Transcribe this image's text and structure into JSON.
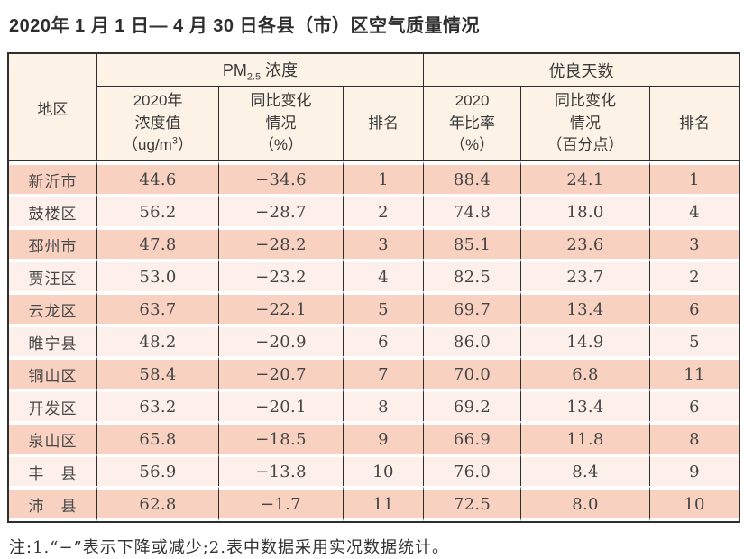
{
  "title": "2020年 1 月 1 日— 4 月 30 日各县（市）区空气质量情况",
  "note": "注:1.“−”表示下降或减少;2.表中数据采用实况数据统计。",
  "colors": {
    "row_odd_bg": "#f8d1c1",
    "row_even_bg": "#fdf0ea",
    "header_bg": "#fdf2e6",
    "border": "#2e2e2e"
  },
  "table": {
    "region_header": "地区",
    "groups": {
      "pm": {
        "prefix": "PM",
        "sub": "2.5",
        "suffix": " 浓度"
      },
      "good": "优良天数"
    },
    "subheaders": {
      "pm_value": {
        "line1": "2020年",
        "line2": "浓度值",
        "line3_pre": "（ug/m",
        "line3_sup": "3",
        "line3_post": "）"
      },
      "pm_change": {
        "line1": "同比变化",
        "line2": "情况",
        "line3": "（%）"
      },
      "pm_rank": "排名",
      "good_rate": {
        "line1": "2020",
        "line2": "年比率",
        "line3": "（%）"
      },
      "good_change": {
        "line1": "同比变化",
        "line2": "情况",
        "line3": "（百分点）"
      },
      "good_rank": "排名"
    },
    "rows": [
      {
        "region": "新沂市",
        "pm_value": "44.6",
        "pm_change": "−34.6",
        "pm_rank": "1",
        "good_rate": "88.4",
        "good_change": "24.1",
        "good_rank": "1"
      },
      {
        "region": "鼓楼区",
        "pm_value": "56.2",
        "pm_change": "−28.7",
        "pm_rank": "2",
        "good_rate": "74.8",
        "good_change": "18.0",
        "good_rank": "4"
      },
      {
        "region": "邳州市",
        "pm_value": "47.8",
        "pm_change": "−28.2",
        "pm_rank": "3",
        "good_rate": "85.1",
        "good_change": "23.6",
        "good_rank": "3"
      },
      {
        "region": "贾汪区",
        "pm_value": "53.0",
        "pm_change": "−23.2",
        "pm_rank": "4",
        "good_rate": "82.5",
        "good_change": "23.7",
        "good_rank": "2"
      },
      {
        "region": "云龙区",
        "pm_value": "63.7",
        "pm_change": "−22.1",
        "pm_rank": "5",
        "good_rate": "69.7",
        "good_change": "13.4",
        "good_rank": "6"
      },
      {
        "region": "睢宁县",
        "pm_value": "48.2",
        "pm_change": "−20.9",
        "pm_rank": "6",
        "good_rate": "86.0",
        "good_change": "14.9",
        "good_rank": "5"
      },
      {
        "region": "铜山区",
        "pm_value": "58.4",
        "pm_change": "−20.7",
        "pm_rank": "7",
        "good_rate": "70.0",
        "good_change": "6.8",
        "good_rank": "11"
      },
      {
        "region": "开发区",
        "pm_value": "63.2",
        "pm_change": "−20.1",
        "pm_rank": "8",
        "good_rate": "69.2",
        "good_change": "13.4",
        "good_rank": "6"
      },
      {
        "region": "泉山区",
        "pm_value": "65.8",
        "pm_change": "−18.5",
        "pm_rank": "9",
        "good_rate": "66.9",
        "good_change": "11.8",
        "good_rank": "8"
      },
      {
        "region": "丰　县",
        "pm_value": "56.9",
        "pm_change": "−13.8",
        "pm_rank": "10",
        "good_rate": "76.0",
        "good_change": "8.4",
        "good_rank": "9"
      },
      {
        "region": "沛　县",
        "pm_value": "62.8",
        "pm_change": "−1.7",
        "pm_rank": "11",
        "good_rate": "72.5",
        "good_change": "8.0",
        "good_rank": "10"
      }
    ]
  }
}
